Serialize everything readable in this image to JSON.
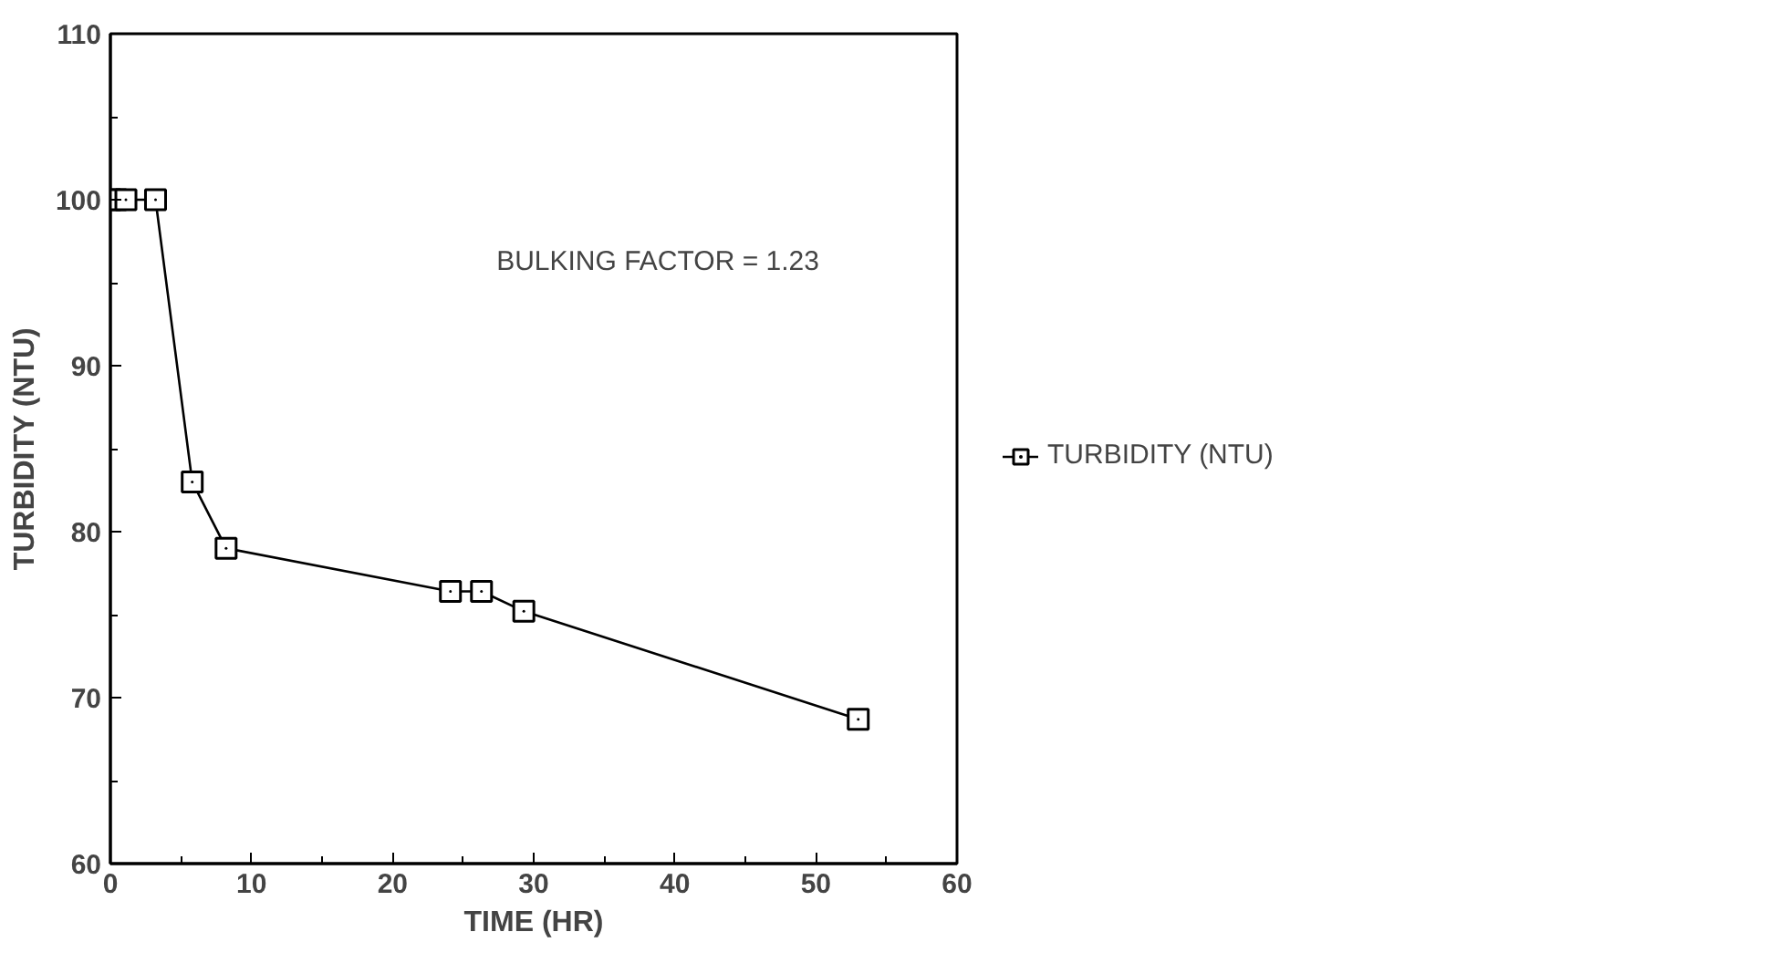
{
  "chart_data": {
    "type": "line",
    "xlabel": "TIME (HR)",
    "ylabel": "TURBIDITY (NTU)",
    "x": [
      0,
      0.4,
      1.1,
      3.2,
      5.8,
      8.2,
      24.1,
      26.3,
      29.3,
      53
    ],
    "series": [
      {
        "name": "TURBIDITY (NTU)",
        "color": "#000000",
        "values": [
          100,
          100,
          100,
          100,
          83,
          79,
          76.4,
          76.4,
          75.2,
          68.7
        ]
      }
    ],
    "xlim": [
      0,
      60
    ],
    "xticks": [
      0,
      10,
      20,
      30,
      40,
      50,
      60
    ],
    "ylim": [
      60,
      110
    ],
    "yticks": [
      60,
      70,
      80,
      90,
      100,
      110
    ],
    "annotations": [
      "BULKING FACTOR = 1.23"
    ],
    "marker": "square",
    "line_style": "solid",
    "grid": false,
    "legend": "right"
  }
}
